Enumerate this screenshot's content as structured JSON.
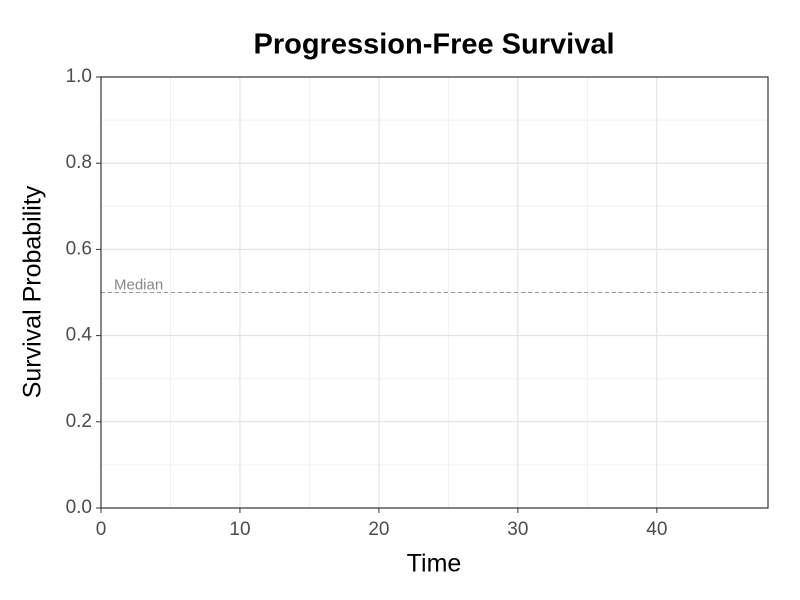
{
  "chart_data": {
    "type": "line",
    "title": "Progression-Free Survival",
    "x_label": "Time",
    "y_label": "Survival Probability",
    "series": [],
    "xlim": [
      0,
      48
    ],
    "xticks": [
      0,
      10,
      20,
      30,
      40
    ],
    "ylim": [
      0,
      1
    ],
    "yticks": [
      {
        "value": 0,
        "label": "0.0"
      },
      {
        "value": 0.2,
        "label": "0.2"
      },
      {
        "value": 0.4,
        "label": "0.4"
      },
      {
        "value": 0.6,
        "label": "0.6"
      },
      {
        "value": 0.8,
        "label": "0.8"
      },
      {
        "value": 1,
        "label": "1.0"
      }
    ],
    "grid": true,
    "hline": {
      "value": 0.5,
      "label": "Median"
    }
  }
}
